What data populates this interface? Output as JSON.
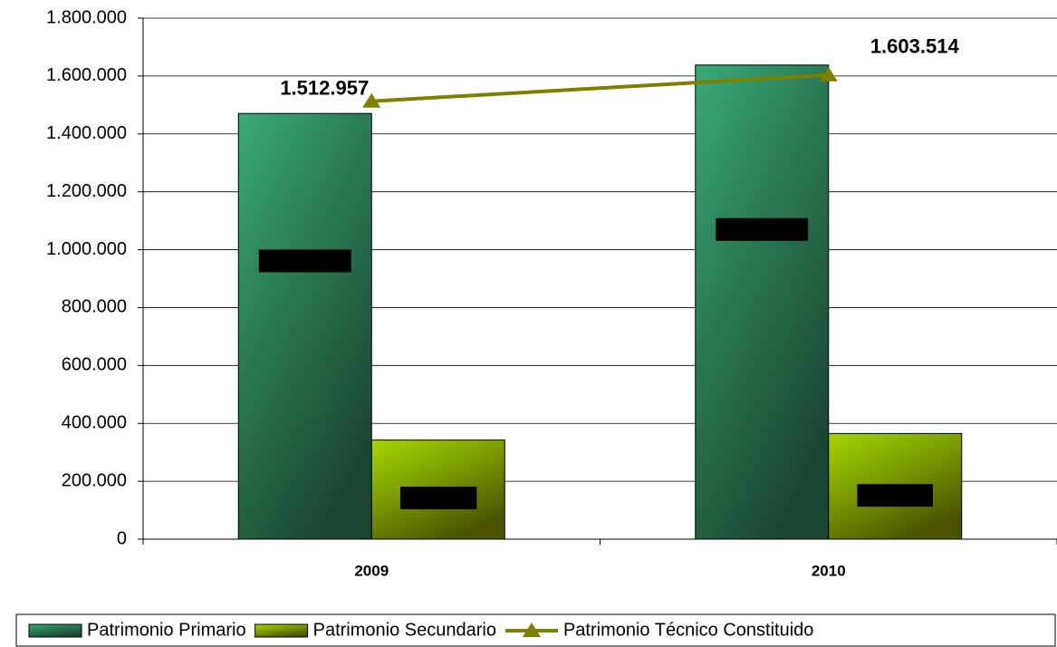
{
  "chart_data": {
    "type": "bar",
    "categories": [
      "2009",
      "2010"
    ],
    "series": [
      {
        "name": "Patrimonio Primario",
        "color": "#2e8b62",
        "values": [
          1470660,
          1637883
        ],
        "value_labels": [
          "1.470.660",
          "1.637.883"
        ]
      },
      {
        "name": "Patrimonio Secundario",
        "color": "#8fb800",
        "values": [
          342404,
          365098
        ],
        "value_labels": [
          "342.404",
          "365.098"
        ]
      },
      {
        "name": "Patrimonio Técnico Constituido",
        "type": "line",
        "color": "#808000",
        "values": [
          1512957,
          1603514
        ],
        "value_labels": [
          "1.512.957",
          "1.603.514"
        ]
      }
    ],
    "ylim": [
      0,
      1800000
    ],
    "yticks": [
      0,
      {
        "value": 200000,
        "label": "200.000"
      },
      {
        "value": 400000,
        "label": "400.000"
      },
      {
        "value": 600000,
        "label": "600.000"
      },
      {
        "value": 800000,
        "label": "800.000"
      },
      {
        "value": 1000000,
        "label": "1.000.000"
      },
      {
        "value": 1200000,
        "label": "1.200.000"
      },
      {
        "value": 1400000,
        "label": "1.400.000"
      },
      {
        "value": 1600000,
        "label": "1.600.000"
      },
      {
        "value": 1800000,
        "label": "1.800.000"
      }
    ],
    "grid": true,
    "legend": "bottom"
  }
}
